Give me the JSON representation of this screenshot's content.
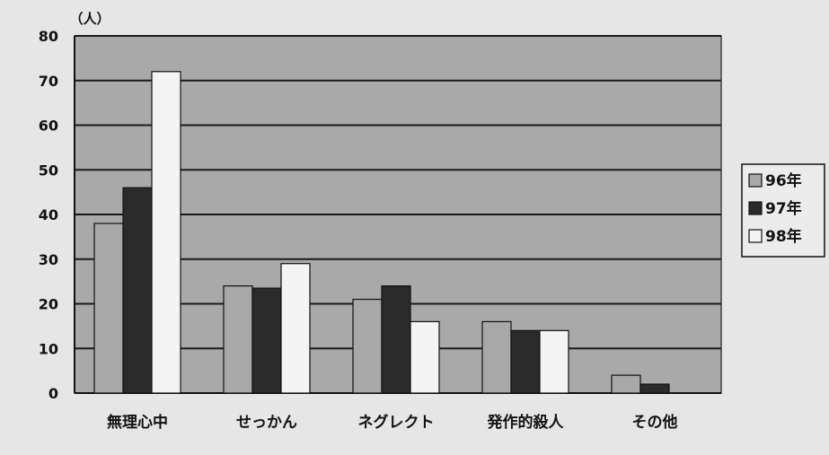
{
  "chart_data": {
    "type": "bar",
    "title": "",
    "ylabel": "（人）",
    "xlabel": "",
    "categories": [
      "無理心中",
      "せっかん",
      "ネグレクト",
      "発作的殺人",
      "その他"
    ],
    "series": [
      {
        "name": "96年",
        "values": [
          38,
          24,
          21,
          16,
          4
        ],
        "color": "#a8a8a8"
      },
      {
        "name": "97年",
        "values": [
          46,
          23.5,
          24,
          14,
          2
        ],
        "color": "#2b2b2b"
      },
      {
        "name": "98年",
        "values": [
          72,
          29,
          16,
          14,
          0
        ],
        "color": "#f4f4f4"
      }
    ],
    "ylim": [
      0,
      80
    ],
    "yticks": [
      0,
      10,
      20,
      30,
      40,
      50,
      60,
      70,
      80
    ],
    "grid": true,
    "legend": "right",
    "plot_bg": "#a9a9a9"
  }
}
